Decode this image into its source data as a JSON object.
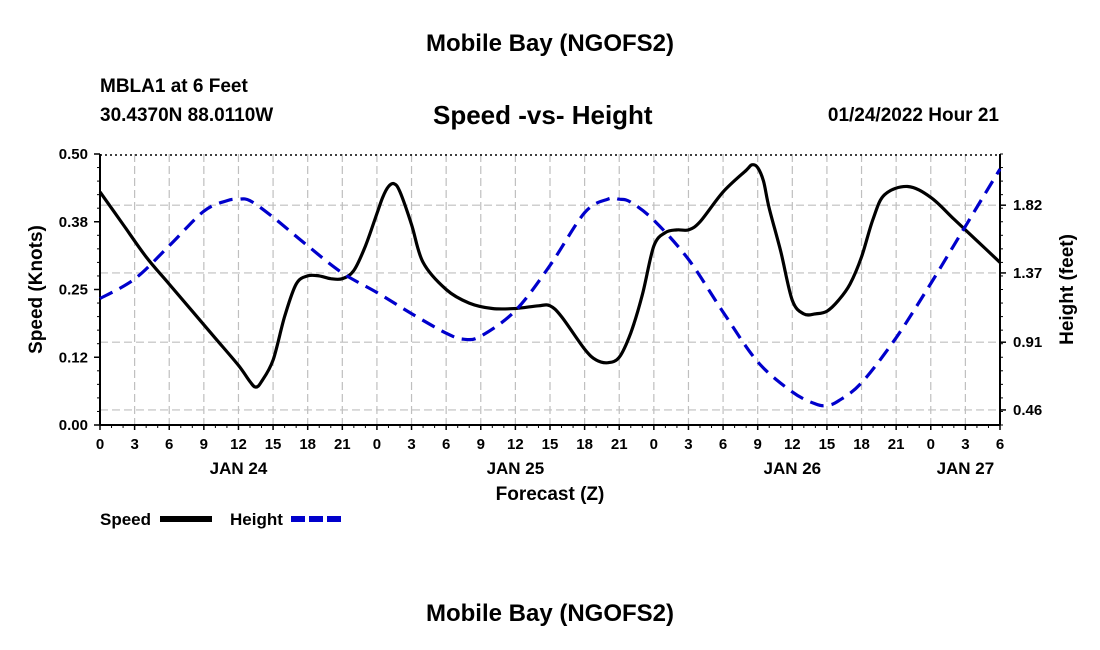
{
  "page": {
    "title_top": "Mobile Bay (NGOFS2)",
    "title_bottom": "Mobile Bay (NGOFS2)",
    "station_line1": "MBLA1 at 6 Feet",
    "station_line2": "30.4370N  88.0110W",
    "date_label": "01/24/2022 Hour 21"
  },
  "colors": {
    "speed": "#000000",
    "height": "#0000cc",
    "grid": "#bfbfbf"
  },
  "chart_data": {
    "type": "line",
    "title": "Speed -vs- Height",
    "xlabel": "Forecast (Z)",
    "ylabel": "Speed (Knots)",
    "y2label": "Height (feet)",
    "x_range": [
      0,
      78
    ],
    "y_range": [
      0,
      0.5
    ],
    "y2_range": [
      0.36,
      2.16
    ],
    "x_ticks": [
      0,
      3,
      6,
      9,
      12,
      15,
      18,
      21,
      24,
      27,
      30,
      33,
      36,
      39,
      42,
      45,
      48,
      51,
      54,
      57,
      60,
      63,
      66,
      69,
      72,
      75,
      78
    ],
    "x_tick_labels": [
      "0",
      "3",
      "6",
      "9",
      "12",
      "15",
      "18",
      "21",
      "0",
      "3",
      "6",
      "9",
      "12",
      "15",
      "18",
      "21",
      "0",
      "3",
      "6",
      "9",
      "12",
      "15",
      "18",
      "21",
      "0",
      "3",
      "6"
    ],
    "y_ticks": [
      0.0,
      0.125,
      0.25,
      0.375,
      0.5
    ],
    "y_tick_labels": [
      "0.00",
      "0.12",
      "0.25",
      "0.38",
      "0.50"
    ],
    "y2_ticks": [
      0.46,
      0.91,
      1.37,
      1.82
    ],
    "y2_tick_labels": [
      "0.46",
      "0.91",
      "1.37",
      "1.82"
    ],
    "day_labels": [
      {
        "x": 12,
        "label": "JAN 24"
      },
      {
        "x": 36,
        "label": "JAN 25"
      },
      {
        "x": 60,
        "label": "JAN 26"
      },
      {
        "x": 75,
        "label": "JAN 27"
      }
    ],
    "legend": [
      {
        "name": "Speed",
        "style": "solid"
      },
      {
        "name": "Height",
        "style": "dashed"
      }
    ],
    "series": [
      {
        "name": "Speed",
        "axis": "left",
        "x": [
          0,
          2,
          4,
          6,
          8,
          10,
          12,
          13,
          13.5,
          14,
          15,
          16,
          17,
          18,
          19,
          20,
          21,
          22,
          23,
          24,
          24.5,
          25,
          25.5,
          26,
          27,
          28,
          30,
          32,
          34,
          36,
          38,
          39,
          40,
          42,
          43,
          44,
          45,
          46,
          47,
          48,
          49,
          50,
          51,
          52,
          54,
          56,
          56.5,
          57,
          57.5,
          58,
          59,
          60,
          61,
          62,
          63,
          64,
          65,
          66,
          67,
          68,
          70,
          72,
          74,
          76,
          78
        ],
        "y": [
          0.43,
          0.37,
          0.31,
          0.26,
          0.21,
          0.16,
          0.11,
          0.08,
          0.07,
          0.08,
          0.12,
          0.2,
          0.26,
          0.275,
          0.275,
          0.27,
          0.27,
          0.285,
          0.33,
          0.39,
          0.42,
          0.44,
          0.445,
          0.43,
          0.37,
          0.3,
          0.25,
          0.225,
          0.215,
          0.215,
          0.22,
          0.22,
          0.2,
          0.14,
          0.12,
          0.115,
          0.125,
          0.17,
          0.24,
          0.33,
          0.355,
          0.36,
          0.36,
          0.375,
          0.43,
          0.47,
          0.48,
          0.475,
          0.45,
          0.4,
          0.32,
          0.23,
          0.205,
          0.205,
          0.21,
          0.23,
          0.26,
          0.31,
          0.38,
          0.425,
          0.44,
          0.42,
          0.38,
          0.34,
          0.3
        ]
      },
      {
        "name": "Height",
        "axis": "right",
        "x": [
          0,
          3,
          6,
          9,
          11,
          12,
          13,
          15,
          18,
          21,
          24,
          27,
          30,
          31.5,
          33,
          36,
          39,
          42,
          44,
          45,
          46,
          48,
          51,
          54,
          57,
          60,
          62,
          63,
          64,
          66,
          69,
          72,
          75,
          78
        ],
        "y": [
          1.2,
          1.33,
          1.55,
          1.78,
          1.85,
          1.86,
          1.85,
          1.74,
          1.55,
          1.37,
          1.24,
          1.1,
          0.97,
          0.93,
          0.95,
          1.12,
          1.42,
          1.77,
          1.86,
          1.86,
          1.84,
          1.72,
          1.46,
          1.11,
          0.78,
          0.58,
          0.5,
          0.49,
          0.52,
          0.64,
          0.94,
          1.3,
          1.68,
          2.06
        ]
      }
    ]
  }
}
